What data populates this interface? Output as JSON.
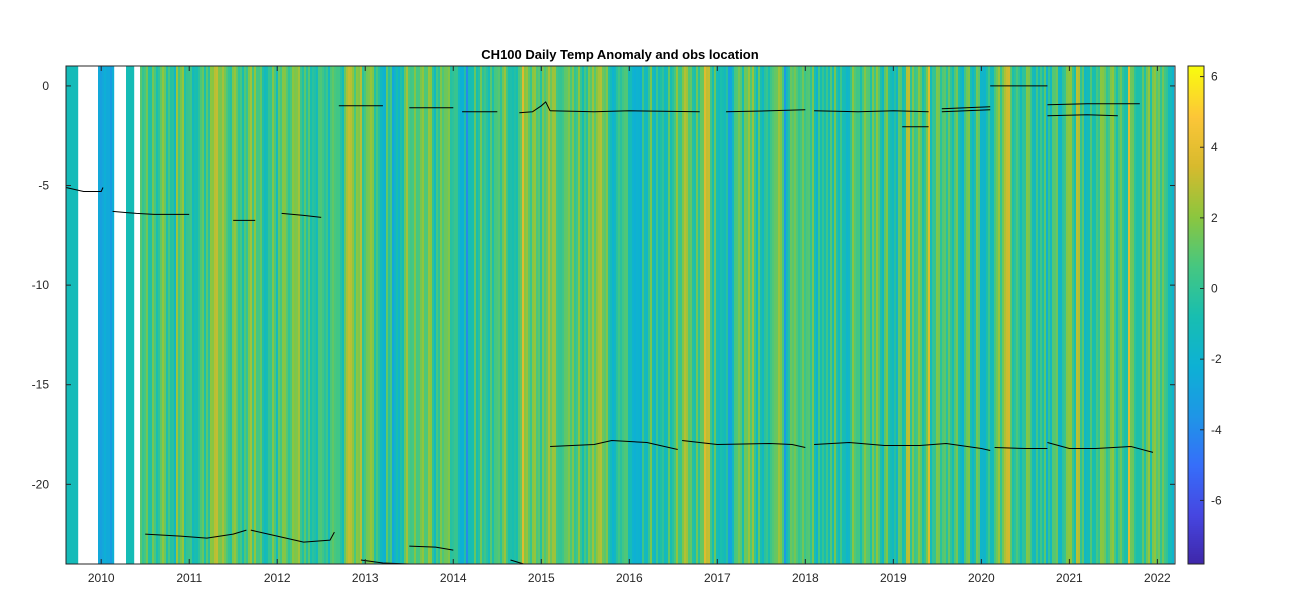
{
  "chart_data": {
    "type": "heatmap",
    "title": "CH100 Daily Temp Anomaly and obs location",
    "xlabel": "",
    "ylabel": "",
    "xlim": [
      2009.6,
      2022.2
    ],
    "ylim": [
      -24,
      1
    ],
    "x_ticks": [
      2010,
      2011,
      2012,
      2013,
      2014,
      2015,
      2016,
      2017,
      2018,
      2019,
      2020,
      2021,
      2022
    ],
    "x_tick_labels": [
      "2010",
      "2011",
      "2012",
      "2013",
      "2014",
      "2015",
      "2016",
      "2017",
      "2018",
      "2019",
      "2020",
      "2021",
      "2022"
    ],
    "y_ticks": [
      0,
      -5,
      -10,
      -15,
      -20
    ],
    "y_tick_labels": [
      "0",
      "-5",
      "-10",
      "-15",
      "-20"
    ],
    "colorbar": {
      "colormap": "parula",
      "limits": [
        -7.8,
        6.3
      ],
      "ticks": [
        6,
        4,
        2,
        0,
        -2,
        -4,
        -6
      ],
      "tick_labels": [
        "6",
        "4",
        "2",
        "0",
        "-2",
        "-4",
        "-6"
      ]
    },
    "data_gaps": [
      [
        2009.73,
        2009.95
      ],
      [
        2010.13,
        2010.26
      ],
      [
        2010.37,
        2010.43
      ],
      [
        2022.17,
        2022.2
      ]
    ],
    "obs_location_series": [
      {
        "points": [
          [
            2009.6,
            -5.1
          ],
          [
            2009.8,
            -5.3
          ],
          [
            2010.0,
            -5.3
          ],
          [
            2010.02,
            -5.1
          ]
        ]
      },
      {
        "points": [
          [
            2010.13,
            -6.3
          ],
          [
            2010.4,
            -6.4
          ],
          [
            2010.6,
            -6.45
          ],
          [
            2011.0,
            -6.45
          ]
        ]
      },
      {
        "points": [
          [
            2011.5,
            -6.75
          ],
          [
            2011.75,
            -6.75
          ]
        ]
      },
      {
        "points": [
          [
            2012.05,
            -6.4
          ],
          [
            2012.3,
            -6.5
          ],
          [
            2012.5,
            -6.6
          ]
        ]
      },
      {
        "points": [
          [
            2012.7,
            -1.0
          ],
          [
            2013.2,
            -1.0
          ]
        ]
      },
      {
        "points": [
          [
            2013.5,
            -1.1
          ],
          [
            2014.0,
            -1.1
          ]
        ]
      },
      {
        "points": [
          [
            2014.1,
            -1.3
          ],
          [
            2014.5,
            -1.3
          ]
        ]
      },
      {
        "points": [
          [
            2014.75,
            -1.35
          ],
          [
            2014.9,
            -1.3
          ],
          [
            2015.0,
            -1.0
          ],
          [
            2015.05,
            -0.8
          ],
          [
            2015.1,
            -1.25
          ]
        ]
      },
      {
        "points": [
          [
            2015.1,
            -1.25
          ],
          [
            2015.6,
            -1.3
          ],
          [
            2016.0,
            -1.25
          ],
          [
            2016.8,
            -1.3
          ]
        ]
      },
      {
        "points": [
          [
            2017.1,
            -1.3
          ],
          [
            2017.6,
            -1.25
          ],
          [
            2018.0,
            -1.2
          ]
        ]
      },
      {
        "points": [
          [
            2018.1,
            -1.25
          ],
          [
            2018.6,
            -1.3
          ],
          [
            2019.0,
            -1.25
          ],
          [
            2019.4,
            -1.3
          ]
        ]
      },
      {
        "points": [
          [
            2019.1,
            -2.05
          ],
          [
            2019.4,
            -2.05
          ]
        ]
      },
      {
        "points": [
          [
            2019.55,
            -1.15
          ],
          [
            2020.1,
            -1.05
          ]
        ]
      },
      {
        "points": [
          [
            2019.55,
            -1.3
          ],
          [
            2020.1,
            -1.2
          ]
        ]
      },
      {
        "points": [
          [
            2020.1,
            0.0
          ],
          [
            2020.75,
            0.0
          ]
        ]
      },
      {
        "points": [
          [
            2020.75,
            -0.95
          ],
          [
            2021.2,
            -0.9
          ],
          [
            2021.8,
            -0.9
          ]
        ]
      },
      {
        "points": [
          [
            2020.75,
            -1.5
          ],
          [
            2021.2,
            -1.45
          ],
          [
            2021.55,
            -1.5
          ]
        ]
      },
      {
        "points": [
          [
            2015.1,
            -18.1
          ],
          [
            2015.6,
            -18.0
          ],
          [
            2015.8,
            -17.8
          ],
          [
            2016.2,
            -17.9
          ],
          [
            2016.4,
            -18.1
          ],
          [
            2016.55,
            -18.25
          ]
        ]
      },
      {
        "points": [
          [
            2016.6,
            -17.8
          ],
          [
            2017.0,
            -18.0
          ],
          [
            2017.6,
            -17.95
          ],
          [
            2017.85,
            -18.0
          ],
          [
            2018.0,
            -18.15
          ]
        ]
      },
      {
        "points": [
          [
            2018.1,
            -18.0
          ],
          [
            2018.5,
            -17.9
          ],
          [
            2018.9,
            -18.05
          ],
          [
            2019.3,
            -18.05
          ],
          [
            2019.6,
            -17.95
          ],
          [
            2020.0,
            -18.2
          ],
          [
            2020.1,
            -18.3
          ]
        ]
      },
      {
        "points": [
          [
            2020.15,
            -18.15
          ],
          [
            2020.5,
            -18.2
          ],
          [
            2020.75,
            -18.2
          ]
        ]
      },
      {
        "points": [
          [
            2020.75,
            -17.9
          ],
          [
            2021.0,
            -18.2
          ],
          [
            2021.3,
            -18.2
          ],
          [
            2021.7,
            -18.1
          ],
          [
            2021.95,
            -18.4
          ]
        ]
      },
      {
        "points": [
          [
            2010.5,
            -22.5
          ],
          [
            2010.9,
            -22.6
          ],
          [
            2011.2,
            -22.7
          ],
          [
            2011.5,
            -22.5
          ],
          [
            2011.65,
            -22.3
          ]
        ]
      },
      {
        "points": [
          [
            2011.7,
            -22.3
          ],
          [
            2012.0,
            -22.6
          ],
          [
            2012.3,
            -22.9
          ],
          [
            2012.6,
            -22.8
          ],
          [
            2012.65,
            -22.4
          ]
        ]
      },
      {
        "points": [
          [
            2012.95,
            -23.8
          ],
          [
            2013.2,
            -23.95
          ],
          [
            2013.5,
            -24.0
          ]
        ]
      },
      {
        "points": [
          [
            2013.5,
            -23.1
          ],
          [
            2013.8,
            -23.15
          ],
          [
            2014.0,
            -23.3
          ]
        ]
      },
      {
        "points": [
          [
            2014.35,
            -24.0
          ],
          [
            2014.45,
            -24.0
          ]
        ]
      },
      {
        "points": [
          [
            2014.65,
            -23.8
          ],
          [
            2014.8,
            -24.0
          ]
        ]
      }
    ]
  }
}
